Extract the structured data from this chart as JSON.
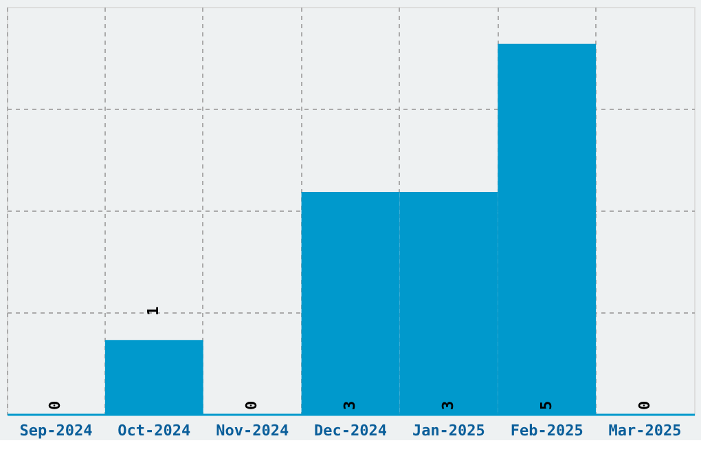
{
  "chart_data": {
    "type": "bar",
    "categories": [
      "Sep-2024",
      "Oct-2024",
      "Nov-2024",
      "Dec-2024",
      "Jan-2025",
      "Feb-2025",
      "Mar-2025"
    ],
    "values": [
      0,
      1,
      0,
      3,
      3,
      5,
      0
    ],
    "color": "#0099cc",
    "ylim": [
      0,
      5.5
    ],
    "yticks": [
      {
        "value": 1.375,
        "label": null
      },
      {
        "value": 2.75,
        "label": null
      },
      {
        "value": 4.125,
        "label": null
      }
    ],
    "tick_labels": "x",
    "grid": true,
    "data_labels": true
  }
}
